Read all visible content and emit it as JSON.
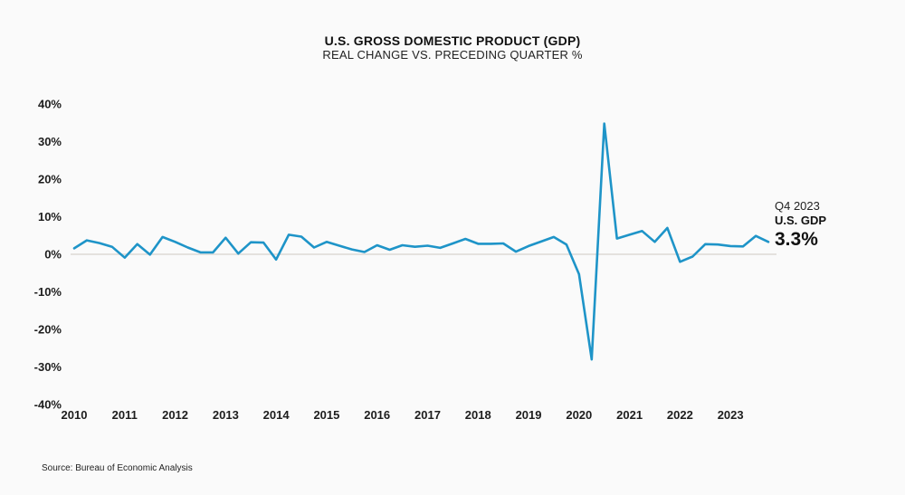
{
  "header": {
    "title": "U.S. GROSS DOMESTIC PRODUCT (GDP)",
    "subtitle": "REAL CHANGE VS. PRECEDING QUARTER %"
  },
  "annotation": {
    "period": "Q4 2023",
    "series": "U.S. GDP",
    "value": "3.3%"
  },
  "source": "Source: Bureau of Economic Analysis",
  "colors": {
    "line": "#1e94c8",
    "zero_line": "#e4e1de",
    "background": "#fafafa",
    "text": "#1d1d1d"
  },
  "chart_data": {
    "type": "line",
    "title": "U.S. GROSS DOMESTIC PRODUCT (GDP)",
    "subtitle": "REAL CHANGE VS. PRECEDING QUARTER %",
    "frequency": "quarterly",
    "start_period": "2010 Q1",
    "end_period": "2023 Q4",
    "x_tick_labels": [
      "2010",
      "2011",
      "2012",
      "2013",
      "2014",
      "2015",
      "2016",
      "2017",
      "2018",
      "2019",
      "2020",
      "2021",
      "2022",
      "2023"
    ],
    "y_tick_values": [
      40,
      30,
      20,
      10,
      0,
      -10,
      -20,
      -30,
      -40
    ],
    "y_tick_labels": [
      "40%",
      "30%",
      "20%",
      "10%",
      "0%",
      "-10%",
      "-20%",
      "-30%",
      "-40%"
    ],
    "ylim": [
      -40,
      40
    ],
    "grid": "zero-line-only",
    "legend": "none",
    "series": [
      {
        "name": "U.S. GDP",
        "values": [
          1.6,
          3.7,
          3.0,
          2.0,
          -0.9,
          2.7,
          -0.1,
          4.6,
          3.3,
          1.8,
          0.5,
          0.5,
          4.4,
          0.2,
          3.2,
          3.1,
          -1.4,
          5.2,
          4.7,
          1.8,
          3.3,
          2.3,
          1.3,
          0.6,
          2.4,
          1.2,
          2.4,
          2.0,
          2.3,
          1.7,
          2.9,
          4.1,
          2.8,
          2.8,
          2.9,
          0.7,
          2.2,
          3.4,
          4.6,
          2.6,
          -5.3,
          -28.0,
          34.8,
          4.2,
          5.2,
          6.2,
          3.3,
          7.0,
          -2.0,
          -0.6,
          2.7,
          2.6,
          2.2,
          2.1,
          4.9,
          3.3
        ]
      }
    ]
  }
}
